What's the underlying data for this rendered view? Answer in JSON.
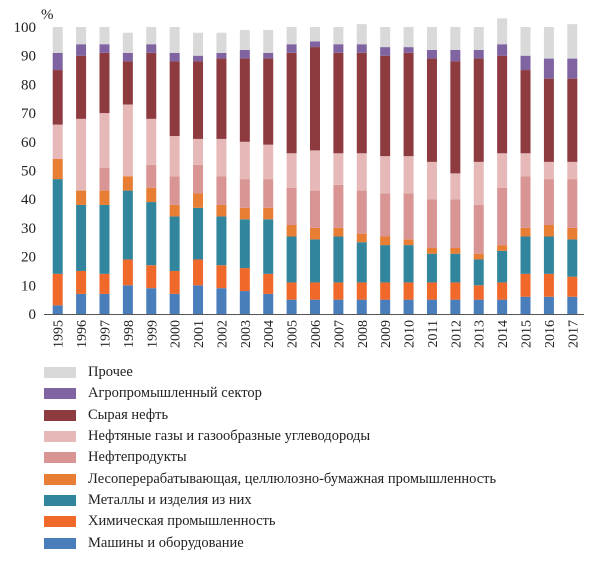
{
  "chart_data": {
    "type": "bar",
    "stacked": true,
    "y_unit_label": "%",
    "ylim": [
      0,
      100
    ],
    "y_ticks": [
      0,
      10,
      20,
      30,
      40,
      50,
      60,
      70,
      80,
      90,
      100
    ],
    "grid": false,
    "legend_placement": "bottom",
    "categories": [
      "1995",
      "1996",
      "1997",
      "1998",
      "1999",
      "2000",
      "2001",
      "2002",
      "2003",
      "2004",
      "2005",
      "2006",
      "2007",
      "2008",
      "2009",
      "2010",
      "2011",
      "2012",
      "2013",
      "2014",
      "2015",
      "2016",
      "2017"
    ],
    "series": [
      {
        "name": "Машины и оборудование",
        "color": "#4a7ebb",
        "values": [
          3,
          7,
          7,
          10,
          9,
          7,
          10,
          9,
          8,
          7,
          5,
          5,
          5,
          5,
          5,
          5,
          5,
          5,
          5,
          5,
          6,
          6,
          6
        ]
      },
      {
        "name": "Химическая промышленность",
        "color": "#f0682a",
        "values": [
          11,
          8,
          7,
          9,
          8,
          8,
          9,
          8,
          8,
          7,
          6,
          6,
          6,
          6,
          6,
          6,
          6,
          6,
          5,
          6,
          8,
          8,
          7
        ]
      },
      {
        "name": "Металлы и изделия из них",
        "color": "#31859c",
        "values": [
          33,
          23,
          24,
          24,
          22,
          19,
          18,
          17,
          17,
          19,
          16,
          15,
          16,
          14,
          13,
          13,
          10,
          10,
          9,
          11,
          13,
          13,
          13
        ]
      },
      {
        "name": "Лесоперерабатывающая, целлюлозно-бумажная промышленность",
        "color": "#e87d34",
        "values": [
          7,
          5,
          5,
          5,
          5,
          4,
          5,
          4,
          4,
          4,
          4,
          4,
          3,
          3,
          3,
          2,
          2,
          2,
          2,
          2,
          3,
          4,
          4
        ]
      },
      {
        "name": "Нефтепродукты",
        "color": "#d99594",
        "values": [
          0,
          0,
          8,
          0,
          8,
          10,
          10,
          10,
          10,
          10,
          13,
          13,
          15,
          15,
          15,
          16,
          17,
          17,
          17,
          20,
          18,
          16,
          17
        ]
      },
      {
        "name": "Нефтяные газы и газообразные углеводороды",
        "color": "#e6b9b8",
        "values": [
          12,
          25,
          19,
          25,
          16,
          14,
          9,
          13,
          13,
          12,
          12,
          14,
          11,
          13,
          13,
          13,
          13,
          9,
          15,
          12,
          8,
          6,
          6
        ]
      },
      {
        "name": "Сырая нефть",
        "color": "#8e3b3f",
        "values": [
          19,
          22,
          21,
          15,
          23,
          26,
          27,
          28,
          29,
          30,
          35,
          36,
          35,
          35,
          35,
          36,
          36,
          39,
          36,
          34,
          29,
          29,
          29
        ]
      },
      {
        "name": "Агропромышленный сектор",
        "color": "#8064a2",
        "values": [
          6,
          4,
          3,
          3,
          3,
          3,
          2,
          2,
          3,
          2,
          3,
          2,
          3,
          3,
          3,
          2,
          3,
          4,
          3,
          4,
          5,
          7,
          7
        ]
      },
      {
        "name": "Прочее",
        "color": "#d9d9d9",
        "values": [
          9,
          6,
          6,
          7,
          6,
          9,
          8,
          7,
          7,
          8,
          6,
          5,
          6,
          7,
          7,
          7,
          8,
          8,
          8,
          9,
          10,
          11,
          12
        ]
      }
    ]
  }
}
